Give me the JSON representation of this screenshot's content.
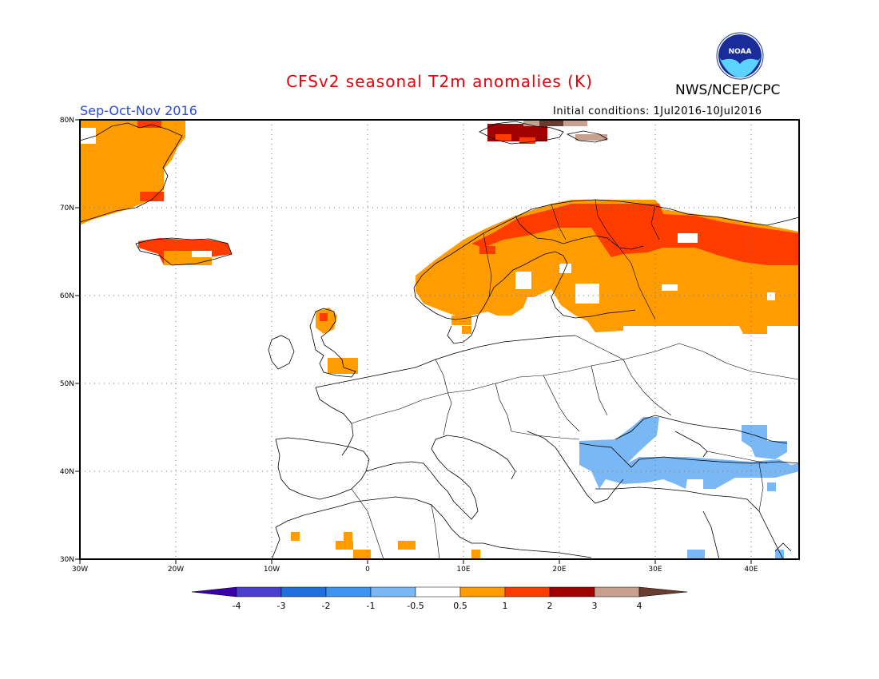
{
  "header": {
    "title": "CFSv2 seasonal T2m anomalies (K)",
    "agency": "NWS/NCEP/CPC",
    "logo_text": "NOAA",
    "season": "Sep-Oct-Nov 2016",
    "initial_conditions": "Initial conditions: 1Jul2016-10Jul2016"
  },
  "map": {
    "region": "Europe",
    "lon_range": [
      -30,
      45
    ],
    "lat_range": [
      30,
      80
    ],
    "lon_ticks": [
      "30W",
      "20W",
      "10W",
      "0",
      "10E",
      "20E",
      "30E",
      "40E"
    ],
    "lat_ticks": [
      "80N",
      "70N",
      "60N",
      "50N",
      "40N",
      "30N"
    ],
    "grid": "dotted"
  },
  "colorbar": {
    "labels": [
      "-4",
      "-3",
      "-2",
      "-1",
      "-0.5",
      "0.5",
      "1",
      "2",
      "3",
      "4"
    ],
    "colors": [
      "#3a00a8",
      "#4a3fd0",
      "#1f6fe0",
      "#3f93f0",
      "#7ab8f5",
      "#ffffff",
      "#ff9c00",
      "#ff3c00",
      "#a00000",
      "#c8a090",
      "#6a3c30"
    ]
  }
}
